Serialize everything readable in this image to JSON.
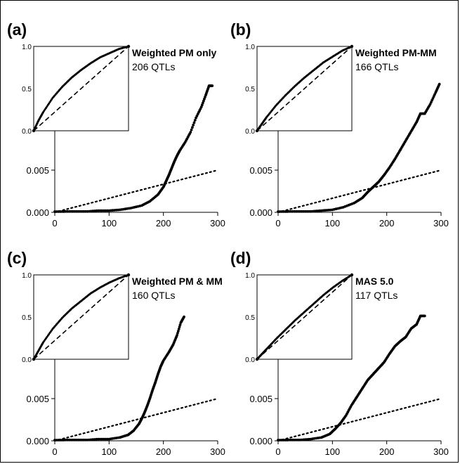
{
  "chart_data": [
    {
      "type": "scatter",
      "panel_label": "(a)",
      "main": {
        "xlim": [
          0,
          300
        ],
        "xticks": [
          0,
          100,
          200,
          300
        ],
        "yticks": [
          0.0,
          0.005
        ],
        "ytick_labels": [
          "0.000",
          "0.005"
        ],
        "ylim": [
          0,
          0.0155
        ],
        "series": [
          {
            "style": "points",
            "values": [
              [
                0,
                0
              ],
              [
                20,
                0.0001
              ],
              [
                40,
                0.0001
              ],
              [
                60,
                0.0001
              ],
              [
                80,
                0.0002
              ],
              [
                100,
                0.0002
              ],
              [
                120,
                0.0003
              ],
              [
                140,
                0.0005
              ],
              [
                160,
                0.0008
              ],
              [
                175,
                0.0013
              ],
              [
                190,
                0.0021
              ],
              [
                200,
                0.003
              ],
              [
                205,
                0.0037
              ],
              [
                210,
                0.0044
              ],
              [
                215,
                0.0052
              ],
              [
                220,
                0.006
              ],
              [
                225,
                0.0067
              ],
              [
                230,
                0.0073
              ],
              [
                240,
                0.0083
              ],
              [
                250,
                0.0095
              ],
              [
                260,
                0.0112
              ],
              [
                270,
                0.0125
              ],
              [
                278,
                0.0139
              ],
              [
                284,
                0.015
              ],
              [
                290,
                0.015
              ]
            ]
          },
          {
            "style": "dotted",
            "values": [
              [
                0,
                0
              ],
              [
                300,
                0.005
              ]
            ]
          }
        ]
      },
      "inset": {
        "xlim": [
          0,
          1
        ],
        "ylim": [
          0,
          1
        ],
        "yticks": [
          0.0,
          0.5,
          1.0
        ],
        "title": "Weighted PM only",
        "subtitle": "206 QTLs",
        "series": [
          {
            "style": "points",
            "values": [
              [
                0,
                0
              ],
              [
                0.05,
                0.12
              ],
              [
                0.1,
                0.22
              ],
              [
                0.2,
                0.39
              ],
              [
                0.3,
                0.52
              ],
              [
                0.4,
                0.63
              ],
              [
                0.5,
                0.72
              ],
              [
                0.6,
                0.8
              ],
              [
                0.7,
                0.87
              ],
              [
                0.8,
                0.92
              ],
              [
                0.9,
                0.97
              ],
              [
                1,
                1
              ]
            ]
          },
          {
            "style": "dashed",
            "values": [
              [
                0,
                0
              ],
              [
                1,
                1
              ]
            ]
          }
        ]
      }
    },
    {
      "type": "scatter",
      "panel_label": "(b)",
      "main": {
        "xlim": [
          0,
          300
        ],
        "xticks": [
          0,
          100,
          200,
          300
        ],
        "yticks": [
          0.0,
          0.005
        ],
        "ytick_labels": [
          "0.000",
          "0.005"
        ],
        "ylim": [
          0,
          0.0155
        ],
        "series": [
          {
            "style": "points",
            "values": [
              [
                0,
                0
              ],
              [
                20,
                0.0001
              ],
              [
                40,
                0.0001
              ],
              [
                60,
                0.0001
              ],
              [
                80,
                0.0002
              ],
              [
                100,
                0.0003
              ],
              [
                120,
                0.0006
              ],
              [
                140,
                0.0011
              ],
              [
                155,
                0.0017
              ],
              [
                165,
                0.0024
              ],
              [
                175,
                0.003
              ],
              [
                185,
                0.0036
              ],
              [
                195,
                0.0044
              ],
              [
                205,
                0.0053
              ],
              [
                215,
                0.0063
              ],
              [
                225,
                0.0074
              ],
              [
                235,
                0.0085
              ],
              [
                245,
                0.0096
              ],
              [
                255,
                0.0107
              ],
              [
                262,
                0.0117
              ],
              [
                270,
                0.0117
              ],
              [
                280,
                0.0128
              ],
              [
                290,
                0.0142
              ],
              [
                297,
                0.0152
              ]
            ]
          },
          {
            "style": "dotted",
            "values": [
              [
                0,
                0
              ],
              [
                300,
                0.005
              ]
            ]
          }
        ]
      },
      "inset": {
        "xlim": [
          0,
          1
        ],
        "ylim": [
          0,
          1
        ],
        "yticks": [
          0.0,
          0.5,
          1.0
        ],
        "title": "Weighted PM-MM",
        "subtitle": "166 QTLs",
        "series": [
          {
            "style": "points",
            "values": [
              [
                0,
                0
              ],
              [
                0.05,
                0.08
              ],
              [
                0.1,
                0.16
              ],
              [
                0.2,
                0.3
              ],
              [
                0.3,
                0.42
              ],
              [
                0.4,
                0.53
              ],
              [
                0.5,
                0.63
              ],
              [
                0.6,
                0.72
              ],
              [
                0.7,
                0.81
              ],
              [
                0.8,
                0.88
              ],
              [
                0.9,
                0.95
              ],
              [
                1,
                1
              ]
            ]
          },
          {
            "style": "dashed",
            "values": [
              [
                0,
                0
              ],
              [
                1,
                1
              ]
            ]
          }
        ]
      }
    },
    {
      "type": "scatter",
      "panel_label": "(c)",
      "main": {
        "xlim": [
          0,
          300
        ],
        "xticks": [
          0,
          100,
          200,
          300
        ],
        "yticks": [
          0.0,
          0.005
        ],
        "ytick_labels": [
          "0.000",
          "0.005"
        ],
        "ylim": [
          0,
          0.0155
        ],
        "series": [
          {
            "style": "points",
            "values": [
              [
                0,
                0
              ],
              [
                20,
                0.0001
              ],
              [
                40,
                0.0001
              ],
              [
                60,
                0.0001
              ],
              [
                80,
                0.0002
              ],
              [
                100,
                0.0002
              ],
              [
                120,
                0.0004
              ],
              [
                135,
                0.0007
              ],
              [
                145,
                0.0012
              ],
              [
                155,
                0.002
              ],
              [
                160,
                0.0026
              ],
              [
                165,
                0.0033
              ],
              [
                170,
                0.0041
              ],
              [
                175,
                0.005
              ],
              [
                180,
                0.006
              ],
              [
                185,
                0.0069
              ],
              [
                190,
                0.0079
              ],
              [
                195,
                0.0088
              ],
              [
                200,
                0.0095
              ],
              [
                210,
                0.0105
              ],
              [
                218,
                0.0114
              ],
              [
                225,
                0.0125
              ],
              [
                232,
                0.014
              ],
              [
                238,
                0.0147
              ]
            ]
          },
          {
            "style": "dotted",
            "values": [
              [
                0,
                0
              ],
              [
                300,
                0.005
              ]
            ]
          }
        ]
      },
      "inset": {
        "xlim": [
          0,
          1
        ],
        "ylim": [
          0,
          1
        ],
        "yticks": [
          0.0,
          0.5,
          1.0
        ],
        "title": "Weighted PM & MM",
        "subtitle": "160 QTLs",
        "series": [
          {
            "style": "points",
            "values": [
              [
                0,
                0
              ],
              [
                0.05,
                0.1
              ],
              [
                0.1,
                0.2
              ],
              [
                0.2,
                0.36
              ],
              [
                0.3,
                0.49
              ],
              [
                0.4,
                0.6
              ],
              [
                0.5,
                0.69
              ],
              [
                0.6,
                0.78
              ],
              [
                0.7,
                0.85
              ],
              [
                0.8,
                0.91
              ],
              [
                0.9,
                0.96
              ],
              [
                1,
                1
              ]
            ]
          },
          {
            "style": "dashed",
            "values": [
              [
                0,
                0
              ],
              [
                1,
                1
              ]
            ]
          }
        ]
      }
    },
    {
      "type": "scatter",
      "panel_label": "(d)",
      "main": {
        "xlim": [
          0,
          300
        ],
        "xticks": [
          0,
          100,
          200,
          300
        ],
        "yticks": [
          0.0,
          0.005
        ],
        "ytick_labels": [
          "0.000",
          "0.005"
        ],
        "ylim": [
          0,
          0.0155
        ],
        "series": [
          {
            "style": "points",
            "values": [
              [
                0,
                0
              ],
              [
                20,
                0.0001
              ],
              [
                40,
                0.0001
              ],
              [
                60,
                0.0002
              ],
              [
                80,
                0.0004
              ],
              [
                95,
                0.0008
              ],
              [
                105,
                0.0014
              ],
              [
                115,
                0.0021
              ],
              [
                125,
                0.003
              ],
              [
                135,
                0.0042
              ],
              [
                145,
                0.0052
              ],
              [
                155,
                0.0062
              ],
              [
                165,
                0.0072
              ],
              [
                175,
                0.0079
              ],
              [
                185,
                0.0086
              ],
              [
                195,
                0.0093
              ],
              [
                205,
                0.0103
              ],
              [
                215,
                0.0112
              ],
              [
                225,
                0.0118
              ],
              [
                235,
                0.0123
              ],
              [
                245,
                0.0133
              ],
              [
                255,
                0.0138
              ],
              [
                262,
                0.0148
              ],
              [
                270,
                0.0148
              ]
            ]
          },
          {
            "style": "dotted",
            "values": [
              [
                0,
                0
              ],
              [
                300,
                0.005
              ]
            ]
          }
        ]
      },
      "inset": {
        "xlim": [
          0,
          1
        ],
        "ylim": [
          0,
          1
        ],
        "yticks": [
          0.0,
          0.5,
          1.0
        ],
        "title": "MAS 5.0",
        "subtitle": "117 QTLs",
        "series": [
          {
            "style": "points",
            "values": [
              [
                0,
                0
              ],
              [
                0.05,
                0.06
              ],
              [
                0.1,
                0.12
              ],
              [
                0.2,
                0.24
              ],
              [
                0.3,
                0.35
              ],
              [
                0.4,
                0.46
              ],
              [
                0.5,
                0.56
              ],
              [
                0.6,
                0.66
              ],
              [
                0.7,
                0.76
              ],
              [
                0.8,
                0.85
              ],
              [
                0.9,
                0.93
              ],
              [
                1,
                1
              ]
            ]
          },
          {
            "style": "dashed",
            "values": [
              [
                0,
                0
              ],
              [
                1,
                1
              ]
            ]
          }
        ]
      }
    }
  ]
}
